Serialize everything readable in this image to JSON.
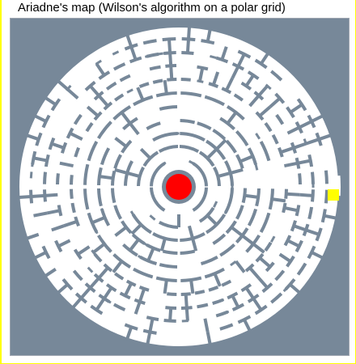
{
  "window": {
    "title": "Ariadne's map (Wilson's algorithm on a polar grid)"
  },
  "maze": {
    "grid": "polar",
    "algorithm": "Wilson's algorithm",
    "rings": 11,
    "colors": {
      "background": "#778899",
      "passage": "#ffffff",
      "wall": "#778899",
      "start_marker": "#ff0000",
      "goal_marker": "#ffff00",
      "center_ring": "#778899"
    },
    "markers": {
      "start": {
        "shape": "circle",
        "location": "center"
      },
      "goal": {
        "shape": "square",
        "location": "outer-ring-east"
      }
    }
  }
}
